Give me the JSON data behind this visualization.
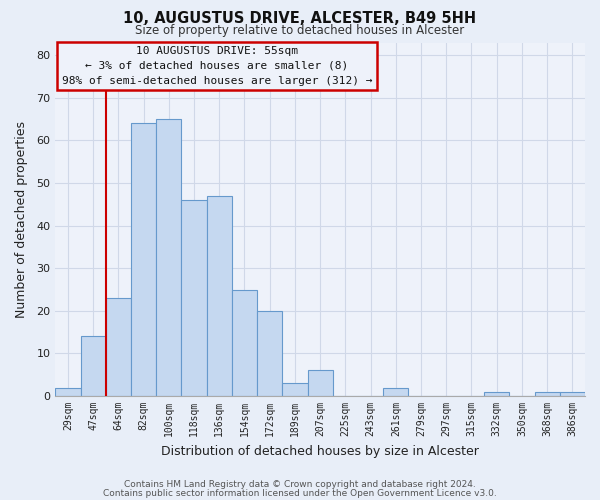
{
  "title": "10, AUGUSTUS DRIVE, ALCESTER, B49 5HH",
  "subtitle": "Size of property relative to detached houses in Alcester",
  "xlabel": "Distribution of detached houses by size in Alcester",
  "ylabel": "Number of detached properties",
  "bin_labels": [
    "29sqm",
    "47sqm",
    "64sqm",
    "82sqm",
    "100sqm",
    "118sqm",
    "136sqm",
    "154sqm",
    "172sqm",
    "189sqm",
    "207sqm",
    "225sqm",
    "243sqm",
    "261sqm",
    "279sqm",
    "297sqm",
    "315sqm",
    "332sqm",
    "350sqm",
    "368sqm",
    "386sqm"
  ],
  "bar_heights": [
    2,
    14,
    23,
    64,
    65,
    46,
    47,
    25,
    20,
    3,
    6,
    0,
    0,
    2,
    0,
    0,
    0,
    1,
    0,
    1,
    1
  ],
  "bar_color": "#c5d8f0",
  "bar_edge_color": "#6699cc",
  "vline_x": 1.5,
  "vline_color": "#cc0000",
  "ylim": [
    0,
    83
  ],
  "yticks": [
    0,
    10,
    20,
    30,
    40,
    50,
    60,
    70,
    80
  ],
  "annotation_box_text": "10 AUGUSTUS DRIVE: 55sqm\n← 3% of detached houses are smaller (8)\n98% of semi-detached houses are larger (312) →",
  "annotation_box_color": "#cc0000",
  "footer_line1": "Contains HM Land Registry data © Crown copyright and database right 2024.",
  "footer_line2": "Contains public sector information licensed under the Open Government Licence v3.0.",
  "bg_color": "#e8eef8",
  "grid_color": "#d0d8e8",
  "plot_bg_color": "#eef2fa"
}
